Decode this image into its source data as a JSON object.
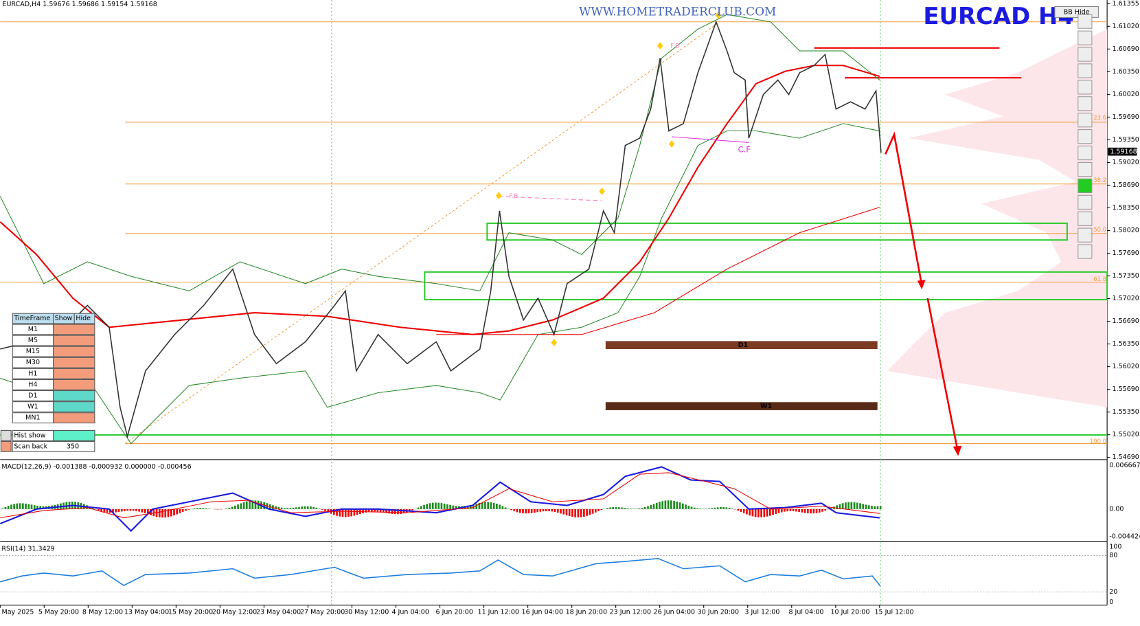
{
  "header": {
    "symbol_info": "EURCAD,H4  1.59676 1.59686 1.59154 1.59168",
    "watermark": "WWW.HOMETRADERCLUB.COM",
    "big_title": "EURCAD  H4",
    "bb_button": "BB Hide"
  },
  "price_axis": {
    "labels": [
      "1.61355",
      "1.61020",
      "1.60690",
      "1.60350",
      "1.60020",
      "1.59690",
      "1.59350",
      "1.59020",
      "1.58690",
      "1.58350",
      "1.58020",
      "1.57690",
      "1.57350",
      "1.57020",
      "1.56690",
      "1.56350",
      "1.56020",
      "1.55690",
      "1.55350",
      "1.55020",
      "1.54690"
    ],
    "current_price": "1.59168"
  },
  "fib_labels": [
    "23.6",
    "38.2",
    "50.0",
    "61.8",
    "100.0"
  ],
  "zone_labels": [
    "D1",
    "W1"
  ],
  "pattern_labels": [
    "F.B",
    "F.B",
    "C.F"
  ],
  "macd": {
    "label": "MACD(12,26,9) -0.001388 -0.000932 0.000000 -0.000456",
    "axis": [
      "0.006667",
      "0.00",
      "-0.004424"
    ]
  },
  "rsi": {
    "label": "RSI(14) 31.3429",
    "axis": [
      "100",
      "80",
      "20",
      "0"
    ]
  },
  "time_axis": [
    "1 May 2025",
    "5 May 20:00",
    "8 May 12:00",
    "13 May 04:00",
    "15 May 20:00",
    "20 May 12:00",
    "23 May 04:00",
    "27 May 20:00",
    "30 May 12:00",
    "4 Jun 04:00",
    "6 Jun 20:00",
    "11 Jun 12:00",
    "16 Jun 04:00",
    "18 Jun 20:00",
    "23 Jun 12:00",
    "26 Jun 04:00",
    "30 Jun 20:00",
    "3 Jul 12:00",
    "8 Jul 04:00",
    "10 Jul 20:00",
    "15 Jul 12:00"
  ],
  "timeframe_panel": {
    "headers": [
      "TimeFrame",
      "Show",
      "Hide"
    ],
    "rows": [
      "M1",
      "M5",
      "M15",
      "M30",
      "H1",
      "H4",
      "D1",
      "W1",
      "MN1"
    ],
    "hist_show": "Hist show",
    "scan_back": "Scan back",
    "scan_back_value": "350"
  }
}
